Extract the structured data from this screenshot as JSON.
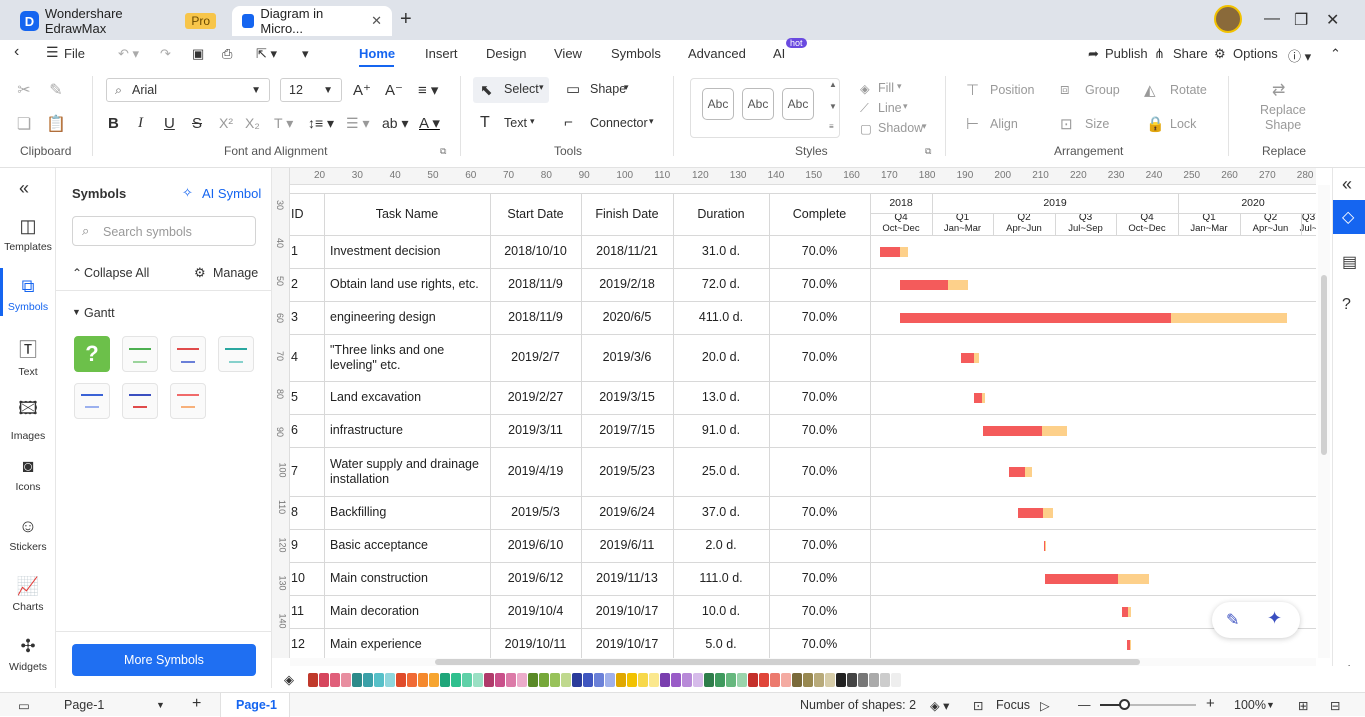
{
  "tabs": [
    {
      "label": "Wondershare EdrawMax",
      "badge": "Pro"
    },
    {
      "label": "Diagram in Micro..."
    }
  ],
  "menu": {
    "file": "File",
    "items": [
      "Home",
      "Insert",
      "Design",
      "View",
      "Symbols",
      "Advanced",
      "AI"
    ],
    "ai_badge": "hot",
    "publish": "Publish",
    "share": "Share",
    "options": "Options"
  },
  "ribbon": {
    "groups": [
      "Clipboard",
      "Font and Alignment",
      "Tools",
      "Styles",
      "Arrangement",
      "Replace"
    ],
    "font": "Arial",
    "font_size": "12",
    "select": "Select",
    "shape": "Shape",
    "text": "Text",
    "connector": "Connector",
    "style_sample": "Abc",
    "fill": "Fill",
    "line": "Line",
    "shadow": "Shadow",
    "position": "Position",
    "group": "Group",
    "rotate": "Rotate",
    "align": "Align",
    "size": "Size",
    "lock": "Lock",
    "replace_shape_1": "Replace",
    "replace_shape_2": "Shape"
  },
  "rail": [
    "Templates",
    "Symbols",
    "Text",
    "Images",
    "Icons",
    "Stickers",
    "Charts",
    "Widgets"
  ],
  "symbols_panel": {
    "title": "Symbols",
    "ai_symbol": "AI Symbol",
    "search_placeholder": "Search symbols",
    "collapse_all": "Collapse All",
    "manage": "Manage",
    "category": "Gantt",
    "more_button": "More Symbols"
  },
  "ruler": {
    "h": [
      "20",
      "30",
      "40",
      "50",
      "60",
      "70",
      "80",
      "90",
      "100",
      "110",
      "120",
      "130",
      "140",
      "150",
      "160",
      "170",
      "180",
      "190",
      "200",
      "210",
      "220",
      "230",
      "240",
      "250",
      "260",
      "270",
      "280"
    ],
    "v": [
      "30",
      "40",
      "50",
      "60",
      "70",
      "80",
      "90",
      "100",
      "110",
      "120",
      "130",
      "140"
    ]
  },
  "gantt": {
    "headers": {
      "id": "ID",
      "task": "Task Name",
      "start": "Start Date",
      "finish": "Finish Date",
      "duration": "Duration",
      "complete": "Complete"
    },
    "years": [
      "2018",
      "2019",
      "2020"
    ],
    "quarters": [
      {
        "q": "Q4",
        "m": "Oct~Dec"
      },
      {
        "q": "Q1",
        "m": "Jan~Mar"
      },
      {
        "q": "Q2",
        "m": "Apr~Jun"
      },
      {
        "q": "Q3",
        "m": "Jul~Sep"
      },
      {
        "q": "Q4",
        "m": "Oct~Dec"
      },
      {
        "q": "Q1",
        "m": "Jan~Mar"
      },
      {
        "q": "Q2",
        "m": "Apr~Jun"
      },
      {
        "q": "Q3",
        "m": "Jul~"
      }
    ],
    "colors": {
      "done": "#f45b5b",
      "remaining": "#fdd08a"
    },
    "rows": [
      {
        "id": "1",
        "task": "Investment decision",
        "start": "2018/10/10",
        "finish": "2018/11/21",
        "duration": "31.0 d.",
        "complete": "70.0%"
      },
      {
        "id": "2",
        "task": "Obtain land use rights, etc.",
        "start": "2018/11/9",
        "finish": "2019/2/18",
        "duration": "72.0 d.",
        "complete": "70.0%"
      },
      {
        "id": "3",
        "task": "engineering design",
        "start": "2018/11/9",
        "finish": "2020/6/5",
        "duration": "411.0 d.",
        "complete": "70.0%"
      },
      {
        "id": "4",
        "task": "\"Three links and one leveling\" etc.",
        "start": "2019/2/7",
        "finish": "2019/3/6",
        "duration": "20.0 d.",
        "complete": "70.0%"
      },
      {
        "id": "5",
        "task": "Land excavation",
        "start": "2019/2/27",
        "finish": "2019/3/15",
        "duration": "13.0 d.",
        "complete": "70.0%"
      },
      {
        "id": "6",
        "task": "infrastructure",
        "start": "2019/3/11",
        "finish": "2019/7/15",
        "duration": "91.0 d.",
        "complete": "70.0%"
      },
      {
        "id": "7",
        "task": "Water supply and drainage installation",
        "start": "2019/4/19",
        "finish": "2019/5/23",
        "duration": "25.0 d.",
        "complete": "70.0%"
      },
      {
        "id": "8",
        "task": "Backfilling",
        "start": "2019/5/3",
        "finish": "2019/6/24",
        "duration": "37.0 d.",
        "complete": "70.0%"
      },
      {
        "id": "9",
        "task": "Basic acceptance",
        "start": "2019/6/10",
        "finish": "2019/6/11",
        "duration": "2.0 d.",
        "complete": "70.0%"
      },
      {
        "id": "10",
        "task": "Main construction",
        "start": "2019/6/12",
        "finish": "2019/11/13",
        "duration": "111.0 d.",
        "complete": "70.0%"
      },
      {
        "id": "11",
        "task": "Main decoration",
        "start": "2019/10/4",
        "finish": "2019/10/17",
        "duration": "10.0 d.",
        "complete": "70.0%"
      },
      {
        "id": "12",
        "task": "Main experience",
        "start": "2019/10/11",
        "finish": "2019/10/17",
        "duration": "5.0 d.",
        "complete": "70.0%"
      }
    ]
  },
  "palette": [
    "#c0392b",
    "#d6455d",
    "#e05f7a",
    "#e88ea0",
    "#2d8a8a",
    "#3aa0a8",
    "#56c0c8",
    "#8fd6dc",
    "#e04b2a",
    "#f06a35",
    "#f5892e",
    "#f7a530",
    "#1fa67a",
    "#2fc08e",
    "#5fd1a8",
    "#9ae0c4",
    "#b03a6a",
    "#c9508a",
    "#dc7aa8",
    "#ecaccb",
    "#5a8a28",
    "#76a83a",
    "#98c25a",
    "#c0d98e",
    "#2a3c9a",
    "#3f56c0",
    "#6a80d8",
    "#a0b0ea",
    "#e0a800",
    "#f2c200",
    "#f7d84a",
    "#fbe88e",
    "#7a3fae",
    "#9a5cc8",
    "#b88ad8",
    "#d6bbea",
    "#2e7d4a",
    "#3f9a5e",
    "#66b87e",
    "#9ad4ac",
    "#c4302b",
    "#e0453a",
    "#ec7a6e",
    "#f4aba2",
    "#7a6a3a",
    "#988850",
    "#b8aa7a",
    "#d6cca8",
    "#222222",
    "#444444",
    "#777777",
    "#aaaaaa",
    "#cccccc",
    "#eeeeee"
  ],
  "status": {
    "page_tab": "Page-1",
    "active_page": "Page-1",
    "shapes": "Number of shapes: 2",
    "focus": "Focus",
    "zoom": "100%"
  }
}
